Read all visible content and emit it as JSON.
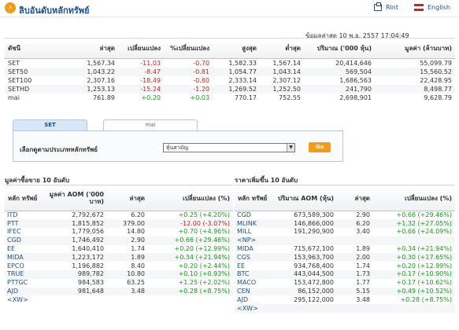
{
  "header": {
    "title": "ลิบอันดับหลักทรัพย์",
    "print_label": "Rint",
    "english_label": "English",
    "accent_color": "#f39c1b",
    "title_color": "#1d4f8c"
  },
  "timestamp": "ข้อมูลล่าสุด 10 พ.ย. 2557 17:04:49",
  "index_table": {
    "headers": [
      "ดัชนี",
      "ล่าสุด",
      "เปลี่ยนแปลง",
      "%เปลี่ยนแปลง",
      "สูงสุด",
      "ต่ำสุด",
      "ปริมาณ ('000 หุ้น)",
      "มูลค่า (ล้านบาท)"
    ],
    "rows": [
      {
        "name": "SET",
        "last": "1,567.34",
        "change": "-11.03",
        "pct": "-0.70",
        "high": "1,582.33",
        "low": "1,567.14",
        "volume": "20,414,646",
        "value": "55,099.79",
        "dir": "neg"
      },
      {
        "name": "SET50",
        "last": "1,043.22",
        "change": "-8.47",
        "pct": "-0.81",
        "high": "1,054.77",
        "low": "1,043.14",
        "volume": "569,504",
        "value": "15,560.52",
        "dir": "neg"
      },
      {
        "name": "SET100",
        "last": "2,307.16",
        "change": "-18.49",
        "pct": "-0.80",
        "high": "2,333.14",
        "low": "2,307.12",
        "volume": "1,686,563",
        "value": "22,428.95",
        "dir": "neg"
      },
      {
        "name": "SETHD",
        "last": "1,253.13",
        "change": "-15.24",
        "pct": "-1.20",
        "high": "1,269.52",
        "low": "1,252.50",
        "volume": "241,790",
        "value": "8,498.77",
        "dir": "neg"
      },
      {
        "name": "mai",
        "last": "761.89",
        "change": "+0.20",
        "pct": "+0.03",
        "high": "770.17",
        "low": "752.55",
        "volume": "2,698,901",
        "value": "9,628.79",
        "dir": "pos"
      }
    ]
  },
  "tabs": [
    {
      "label": "SET",
      "active": true
    },
    {
      "label": "mai",
      "active": false
    }
  ],
  "filter": {
    "label": "เลือกดูตามประเภทหลักทรัพย์",
    "selected": "หุ้นสามัญ",
    "go_label": "Go"
  },
  "left_section": {
    "title": "มูลค่าซื้อขาย 10 อันดับ",
    "headers": [
      "หลัก ทรัพย์",
      "มูลค่า AOM ('000 บาท)",
      "ล่าสุด",
      "เปลี่ยนแปลง (%)"
    ],
    "rows": [
      {
        "symbol": "ITD",
        "col2": "2,792,672",
        "last": "6.20",
        "change": "+0.25 (+4.20%)",
        "dir": "pos"
      },
      {
        "symbol": "PTT",
        "col2": "1,815,852",
        "last": "379.00",
        "change": "-12.00 (-3.07%)",
        "dir": "neg"
      },
      {
        "symbol": "IFEC",
        "col2": "1,779,056",
        "last": "14.80",
        "change": "+0.70 (+4.96%)",
        "dir": "pos"
      },
      {
        "symbol": "CGD",
        "col2": "1,746,492",
        "last": "2.90",
        "change": "+0.66 (+29.46%)",
        "dir": "pos"
      },
      {
        "symbol": "EE",
        "col2": "1,640,410",
        "last": "1.74",
        "change": "+0.20 (+12.99%)",
        "dir": "pos"
      },
      {
        "symbol": "MIDA",
        "col2": "1,223,172",
        "last": "1.89",
        "change": "+0.34 (+21.94%)",
        "dir": "pos"
      },
      {
        "symbol": "EPCO",
        "col2": "1,196,882",
        "last": "8.40",
        "change": "+0.20 (+2.44%)",
        "dir": "pos"
      },
      {
        "symbol": "TRUE",
        "col2": "989,782",
        "last": "10.80",
        "change": "+0.10 (+0.93%)",
        "dir": "pos"
      },
      {
        "symbol": "PTTGC",
        "col2": "984,583",
        "last": "63.25",
        "change": "+1.25 (+2.02%)",
        "dir": "pos"
      },
      {
        "symbol": "AJD",
        "col2": "981,648",
        "last": "3.48",
        "change": "+0.28 (+8.75%)",
        "dir": "pos"
      },
      {
        "symbol": "<XW>",
        "col2": "",
        "last": "",
        "change": "",
        "dir": "pos"
      }
    ]
  },
  "right_section": {
    "title": "ราคาเพิ่มขึ้น 10 อันดับ",
    "headers": [
      "หลัก ทรัพย์",
      "ปริมาณ AOM (หุ้น)",
      "ล่าสุด",
      "เปลี่ยนแปลง (%)"
    ],
    "rows": [
      {
        "symbol": "CGD",
        "col2": "673,589,300",
        "last": "2.90",
        "change": "+0.66 (+29.46%)",
        "dir": "pos"
      },
      {
        "symbol": "MLINK",
        "col2": "146,866,000",
        "last": "6.20",
        "change": "+1.32 (+27.05%)",
        "dir": "pos"
      },
      {
        "symbol": "MILL",
        "col2": "191,290,900",
        "last": "3.40",
        "change": "+0.66 (+24.09%)",
        "dir": "pos"
      },
      {
        "symbol": "<NP>",
        "col2": "",
        "last": "",
        "change": "",
        "dir": "pos"
      },
      {
        "symbol": "MIDA",
        "col2": "715,672,100",
        "last": "1.89",
        "change": "+0.34 (+21.94%)",
        "dir": "pos"
      },
      {
        "symbol": "CGS",
        "col2": "153,963,700",
        "last": "2.00",
        "change": "+0.30 (+17.65%)",
        "dir": "pos"
      },
      {
        "symbol": "EE",
        "col2": "934,768,400",
        "last": "1.74",
        "change": "+0.20 (+12.99%)",
        "dir": "pos"
      },
      {
        "symbol": "BTC",
        "col2": "443,044,500",
        "last": "1.73",
        "change": "+0.17 (+10.90%)",
        "dir": "pos"
      },
      {
        "symbol": "MACO",
        "col2": "153,472,800",
        "last": "1.77",
        "change": "+0.17 (+10.62%)",
        "dir": "pos"
      },
      {
        "symbol": "CEN",
        "col2": "86,152,000",
        "last": "5.15",
        "change": "+0.49 (+10.52%)",
        "dir": "pos"
      },
      {
        "symbol": "AJD",
        "col2": "295,122,000",
        "last": "3.48",
        "change": "+0.28 (+8.75%)",
        "dir": "pos"
      },
      {
        "symbol": "<XW>",
        "col2": "",
        "last": "",
        "change": "",
        "dir": "pos"
      }
    ]
  }
}
